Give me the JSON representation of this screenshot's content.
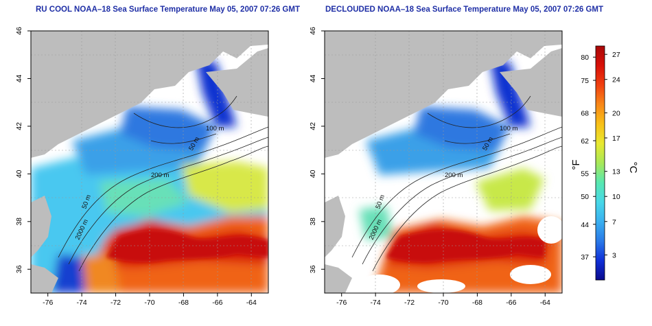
{
  "panels": [
    {
      "title": "RU COOL NOAA–18 Sea Surface Temperature May 05, 2007 07:26 GMT",
      "kind": "cool",
      "x_ticks": [
        -76,
        -74,
        -72,
        -70,
        -68,
        -66,
        -64
      ],
      "y_ticks": [
        36,
        38,
        40,
        42,
        44,
        46
      ],
      "contour_labels": [
        "100 m",
        "50 m",
        "200 m",
        "50 m",
        "2000 m"
      ]
    },
    {
      "title": "DECLOUDED NOAA–18 Sea Surface Temperature May 05, 2007 07:26 GMT",
      "kind": "declouded",
      "x_ticks": [
        -76,
        -74,
        -72,
        -70,
        -68,
        -66,
        -64
      ],
      "y_ticks": [
        36,
        38,
        40,
        42,
        44,
        46
      ],
      "contour_labels": [
        "100 m",
        "50 m",
        "200 m",
        "50 m",
        "2000 m"
      ]
    }
  ],
  "colorbar": {
    "fahrenheit_label": "°F",
    "celsius_label": "°C",
    "fahrenheit_ticks": [
      37,
      44,
      50,
      55,
      62,
      68,
      75,
      80
    ],
    "celsius_ticks": [
      3,
      7,
      10,
      13,
      17,
      20,
      24,
      27
    ],
    "range_c": [
      0,
      28
    ],
    "colors": [
      "#0a0a8c",
      "#1030d8",
      "#2a7ae8",
      "#3ab0f0",
      "#48d8e8",
      "#58e8b0",
      "#a8e858",
      "#e8e830",
      "#f8c018",
      "#f88818",
      "#f04010",
      "#d81008",
      "#a80808"
    ]
  },
  "map": {
    "extent": {
      "lon": [
        -77,
        -63
      ],
      "lat": [
        35,
        46
      ]
    },
    "land_color": "#bdbdbd",
    "cloud_color": "#ffffff"
  }
}
